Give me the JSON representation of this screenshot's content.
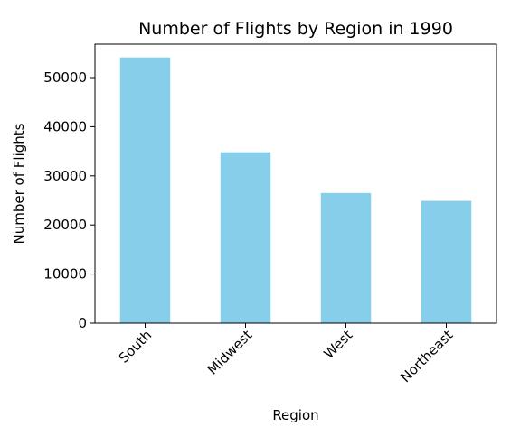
{
  "chart_data": {
    "type": "bar",
    "title": "Number of Flights by Region in 1990",
    "xlabel": "Region",
    "ylabel": "Number of Flights",
    "categories": [
      "South",
      "Midwest",
      "West",
      "Northeast"
    ],
    "values": [
      54100,
      34800,
      26500,
      24900
    ],
    "yticks": [
      0,
      10000,
      20000,
      30000,
      40000,
      50000
    ],
    "ylim": [
      0,
      56800
    ],
    "bar_color": "#87CEEB",
    "grid": false,
    "legend": "none"
  }
}
